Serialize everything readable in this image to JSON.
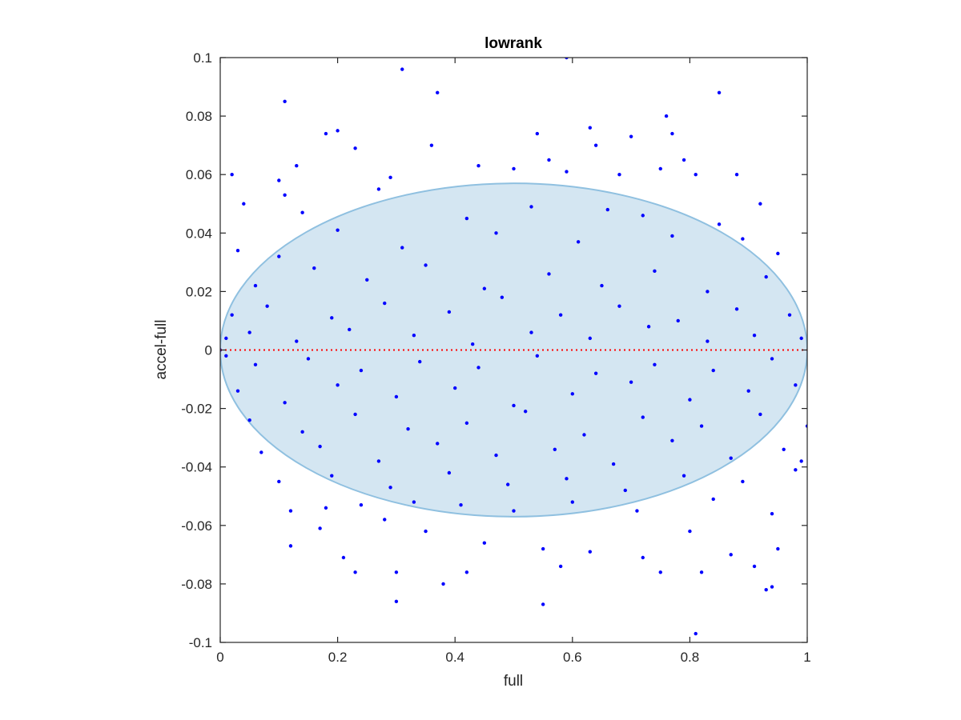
{
  "chart_data": {
    "type": "scatter",
    "title": "lowrank",
    "xlabel": "full",
    "ylabel": "accel-full",
    "xlim": [
      0,
      1
    ],
    "ylim": [
      -0.1,
      0.1
    ],
    "x_ticks": [
      0,
      0.2,
      0.4,
      0.6,
      0.8,
      1
    ],
    "x_tick_labels": [
      "0",
      "0.2",
      "0.4",
      "0.6",
      "0.8",
      "1"
    ],
    "y_ticks": [
      0.1,
      0.08,
      0.06,
      0.04,
      0.02,
      0,
      -0.02,
      -0.04,
      -0.06,
      -0.08,
      -0.1
    ],
    "y_tick_labels": [
      "0.1",
      "0.08",
      "0.06",
      "0.04",
      "0.02",
      "0",
      "-0.02",
      "-0.04",
      "-0.06",
      "-0.08",
      "-0.1"
    ],
    "grid": false,
    "box": true,
    "colors": {
      "points": "#0000ff",
      "ellipse_fill": "#d4e6f2",
      "ellipse_edge": "#8fc0e0",
      "reference_line": "#ff0000",
      "axes": "#262626"
    },
    "series": [
      {
        "marker": "dot",
        "points": [
          [
            0.59,
            0.1
          ],
          [
            0.31,
            0.096
          ],
          [
            0.37,
            0.088
          ],
          [
            0.85,
            0.088
          ],
          [
            0.11,
            0.085
          ],
          [
            0.76,
            0.08
          ],
          [
            0.2,
            0.075
          ],
          [
            0.18,
            0.074
          ],
          [
            0.63,
            0.076
          ],
          [
            0.54,
            0.074
          ],
          [
            0.7,
            0.073
          ],
          [
            0.77,
            0.074
          ],
          [
            0.36,
            0.07
          ],
          [
            0.23,
            0.069
          ],
          [
            0.64,
            0.07
          ],
          [
            0.13,
            0.063
          ],
          [
            0.44,
            0.063
          ],
          [
            0.56,
            0.065
          ],
          [
            0.79,
            0.065
          ],
          [
            0.02,
            0.06
          ],
          [
            0.29,
            0.059
          ],
          [
            0.1,
            0.058
          ],
          [
            0.5,
            0.062
          ],
          [
            0.59,
            0.061
          ],
          [
            0.68,
            0.06
          ],
          [
            0.81,
            0.06
          ],
          [
            0.88,
            0.06
          ],
          [
            0.75,
            0.062
          ],
          [
            0.11,
            0.053
          ],
          [
            0.27,
            0.055
          ],
          [
            0.92,
            0.05
          ],
          [
            0.04,
            0.05
          ],
          [
            0.14,
            0.047
          ],
          [
            0.42,
            0.045
          ],
          [
            0.53,
            0.049
          ],
          [
            0.66,
            0.048
          ],
          [
            0.72,
            0.046
          ],
          [
            0.85,
            0.043
          ],
          [
            0.03,
            0.034
          ],
          [
            0.1,
            0.032
          ],
          [
            0.2,
            0.041
          ],
          [
            0.31,
            0.035
          ],
          [
            0.47,
            0.04
          ],
          [
            0.61,
            0.037
          ],
          [
            0.77,
            0.039
          ],
          [
            0.89,
            0.038
          ],
          [
            0.95,
            0.033
          ],
          [
            0.06,
            0.022
          ],
          [
            0.16,
            0.028
          ],
          [
            0.25,
            0.024
          ],
          [
            0.35,
            0.029
          ],
          [
            0.45,
            0.021
          ],
          [
            0.56,
            0.026
          ],
          [
            0.65,
            0.022
          ],
          [
            0.74,
            0.027
          ],
          [
            0.83,
            0.02
          ],
          [
            0.93,
            0.025
          ],
          [
            0.02,
            0.012
          ],
          [
            0.08,
            0.015
          ],
          [
            0.19,
            0.011
          ],
          [
            0.28,
            0.016
          ],
          [
            0.39,
            0.013
          ],
          [
            0.48,
            0.018
          ],
          [
            0.58,
            0.012
          ],
          [
            0.68,
            0.015
          ],
          [
            0.78,
            0.01
          ],
          [
            0.88,
            0.014
          ],
          [
            0.97,
            0.012
          ],
          [
            0.01,
            0.004
          ],
          [
            0.05,
            0.006
          ],
          [
            0.13,
            0.003
          ],
          [
            0.22,
            0.007
          ],
          [
            0.33,
            0.005
          ],
          [
            0.43,
            0.002
          ],
          [
            0.53,
            0.006
          ],
          [
            0.63,
            0.004
          ],
          [
            0.73,
            0.008
          ],
          [
            0.83,
            0.003
          ],
          [
            0.91,
            0.005
          ],
          [
            0.99,
            0.004
          ],
          [
            0.0,
            0.0
          ],
          [
            0.01,
            -0.002
          ],
          [
            0.06,
            -0.005
          ],
          [
            0.15,
            -0.003
          ],
          [
            0.24,
            -0.007
          ],
          [
            0.34,
            -0.004
          ],
          [
            0.44,
            -0.006
          ],
          [
            0.54,
            -0.002
          ],
          [
            0.64,
            -0.008
          ],
          [
            0.74,
            -0.005
          ],
          [
            0.84,
            -0.007
          ],
          [
            0.94,
            -0.003
          ],
          [
            0.03,
            -0.014
          ],
          [
            0.11,
            -0.018
          ],
          [
            0.2,
            -0.012
          ],
          [
            0.3,
            -0.016
          ],
          [
            0.4,
            -0.013
          ],
          [
            0.5,
            -0.019
          ],
          [
            0.6,
            -0.015
          ],
          [
            0.7,
            -0.011
          ],
          [
            0.8,
            -0.017
          ],
          [
            0.9,
            -0.014
          ],
          [
            0.98,
            -0.012
          ],
          [
            0.05,
            -0.024
          ],
          [
            0.14,
            -0.028
          ],
          [
            0.23,
            -0.022
          ],
          [
            0.32,
            -0.027
          ],
          [
            0.42,
            -0.025
          ],
          [
            0.52,
            -0.021
          ],
          [
            0.62,
            -0.029
          ],
          [
            0.72,
            -0.023
          ],
          [
            0.82,
            -0.026
          ],
          [
            0.92,
            -0.022
          ],
          [
            0.07,
            -0.035
          ],
          [
            0.17,
            -0.033
          ],
          [
            0.27,
            -0.038
          ],
          [
            0.37,
            -0.032
          ],
          [
            0.47,
            -0.036
          ],
          [
            0.57,
            -0.034
          ],
          [
            0.67,
            -0.039
          ],
          [
            0.77,
            -0.031
          ],
          [
            0.87,
            -0.037
          ],
          [
            0.96,
            -0.034
          ],
          [
            0.1,
            -0.045
          ],
          [
            0.19,
            -0.043
          ],
          [
            0.29,
            -0.047
          ],
          [
            0.39,
            -0.042
          ],
          [
            0.49,
            -0.046
          ],
          [
            0.59,
            -0.044
          ],
          [
            0.69,
            -0.048
          ],
          [
            0.79,
            -0.043
          ],
          [
            0.89,
            -0.045
          ],
          [
            0.98,
            -0.041
          ],
          [
            0.12,
            -0.055
          ],
          [
            0.18,
            -0.054
          ],
          [
            0.24,
            -0.053
          ],
          [
            0.33,
            -0.052
          ],
          [
            0.41,
            -0.053
          ],
          [
            0.5,
            -0.055
          ],
          [
            0.6,
            -0.052
          ],
          [
            0.71,
            -0.055
          ],
          [
            0.84,
            -0.051
          ],
          [
            0.94,
            -0.056
          ],
          [
            0.12,
            -0.067
          ],
          [
            0.17,
            -0.061
          ],
          [
            0.21,
            -0.071
          ],
          [
            0.28,
            -0.058
          ],
          [
            0.35,
            -0.062
          ],
          [
            0.45,
            -0.066
          ],
          [
            0.55,
            -0.068
          ],
          [
            0.63,
            -0.069
          ],
          [
            0.72,
            -0.071
          ],
          [
            0.8,
            -0.062
          ],
          [
            0.87,
            -0.07
          ],
          [
            0.95,
            -0.068
          ],
          [
            0.23,
            -0.076
          ],
          [
            0.3,
            -0.076
          ],
          [
            0.38,
            -0.08
          ],
          [
            0.42,
            -0.076
          ],
          [
            0.58,
            -0.074
          ],
          [
            0.75,
            -0.076
          ],
          [
            0.82,
            -0.076
          ],
          [
            0.91,
            -0.074
          ],
          [
            0.3,
            -0.086
          ],
          [
            0.55,
            -0.087
          ],
          [
            0.93,
            -0.082
          ],
          [
            0.94,
            -0.081
          ],
          [
            0.81,
            -0.097
          ],
          [
            1.0,
            -0.026
          ],
          [
            0.99,
            -0.038
          ]
        ]
      }
    ],
    "ellipse": {
      "cx": 0.5,
      "cy": 0.0,
      "rx": 0.5,
      "ry": 0.057
    },
    "reference_line": {
      "y": 0,
      "style": "dotted"
    }
  }
}
